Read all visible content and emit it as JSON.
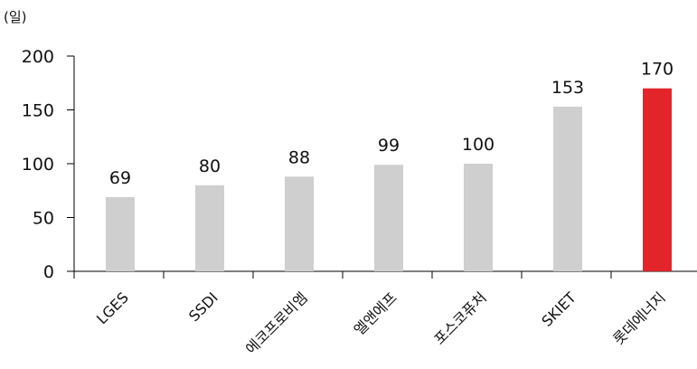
{
  "chart_data": {
    "type": "bar",
    "unit_label": "(일)",
    "categories": [
      "LGES",
      "SSDI",
      "에코프로비엠",
      "엘앤에프",
      "포스코퓨처",
      "SKIET",
      "롯데에너지"
    ],
    "values": [
      69,
      80,
      88,
      99,
      100,
      153,
      170
    ],
    "data_labels": [
      "69",
      "80",
      "88",
      "99",
      "100",
      "153",
      "170"
    ],
    "yticks": [
      "0",
      "50",
      "100",
      "150",
      "200"
    ],
    "ylim": [
      0,
      200
    ],
    "grid": false,
    "legend": "none",
    "title": "",
    "xlabel": "",
    "ylabel": "",
    "colors": {
      "default_bar": "#d0cfcf",
      "highlight_bar": "#e3242b",
      "axis": "#000000",
      "text": "#111111"
    },
    "highlight_category": "롯데에너지"
  }
}
